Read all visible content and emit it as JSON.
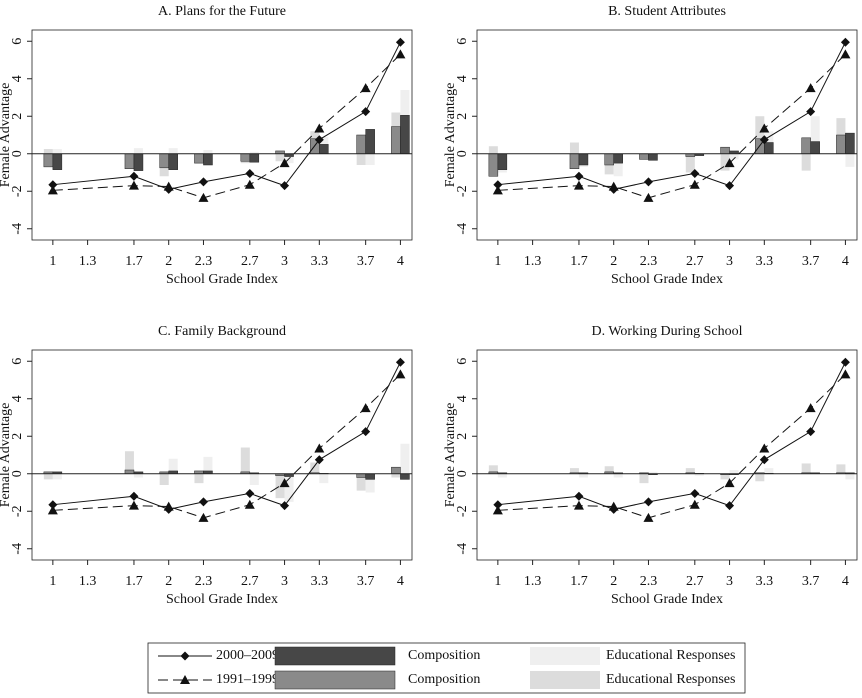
{
  "legend": {
    "rows": [
      {
        "period": "2000–2009:",
        "marker": "diamond",
        "dashed": false,
        "composition": "Composition",
        "composition_color": "#474747",
        "education": "Educational Responses",
        "education_color": "#efefef"
      },
      {
        "period": "1991–1999:",
        "marker": "triangle",
        "dashed": true,
        "composition": "Composition",
        "composition_color": "#8a8a8a",
        "education": "Educational Responses",
        "education_color": "#dcdcdc"
      }
    ]
  },
  "chart_data": [
    {
      "type": "combo",
      "title": "A. Plans for the Future",
      "x_label": "School Grade Index",
      "y_label": "Female Advantage",
      "x": [
        1,
        1.7,
        2,
        2.3,
        2.7,
        3,
        3.3,
        3.7,
        4
      ],
      "xlim": [
        0.82,
        4.1
      ],
      "xticks": [
        1,
        1.3,
        1.7,
        2,
        2.3,
        2.7,
        3,
        3.3,
        3.7,
        4
      ],
      "ylim": [
        -4.6,
        6.6
      ],
      "yticks": [
        -4,
        -2,
        0,
        2,
        4,
        6
      ],
      "lines": [
        [
          -1.65,
          -1.2,
          -1.9,
          -1.5,
          -1.05,
          -1.7,
          0.75,
          2.25,
          5.95
        ],
        [
          -1.95,
          -1.7,
          -1.75,
          -2.35,
          -1.65,
          -0.5,
          1.35,
          3.5,
          5.3
        ]
      ],
      "composition": [
        [
          -0.85,
          -0.9,
          -0.85,
          -0.6,
          -0.45,
          -0.15,
          0.5,
          1.3,
          2.05
        ],
        [
          -0.7,
          -0.8,
          -0.75,
          -0.5,
          -0.4,
          0.15,
          0.8,
          1.0,
          1.45
        ]
      ],
      "education": [
        [
          0.25,
          0.3,
          0.3,
          0.2,
          0.1,
          -0.5,
          0.9,
          -0.6,
          3.4
        ],
        [
          0.25,
          -0.6,
          -1.2,
          -0.4,
          -0.5,
          -0.4,
          1.2,
          -0.6,
          2.2
        ]
      ]
    },
    {
      "type": "combo",
      "title": "B. Student Attributes",
      "x_label": "School Grade Index",
      "y_label": "Female Advantage",
      "x": [
        1,
        1.7,
        2,
        2.3,
        2.7,
        3,
        3.3,
        3.7,
        4
      ],
      "xlim": [
        0.82,
        4.1
      ],
      "xticks": [
        1,
        1.3,
        1.7,
        2,
        2.3,
        2.7,
        3,
        3.3,
        3.7,
        4
      ],
      "ylim": [
        -4.6,
        6.6
      ],
      "yticks": [
        -4,
        -2,
        0,
        2,
        4,
        6
      ],
      "lines": [
        [
          -1.65,
          -1.2,
          -1.9,
          -1.5,
          -1.05,
          -1.7,
          0.75,
          2.25,
          5.95
        ],
        [
          -1.95,
          -1.7,
          -1.75,
          -2.35,
          -1.65,
          -0.5,
          1.35,
          3.5,
          5.3
        ]
      ],
      "composition": [
        [
          -0.85,
          -0.6,
          -0.5,
          -0.35,
          -0.1,
          0.15,
          0.6,
          0.65,
          1.1
        ],
        [
          -1.2,
          -0.8,
          -0.6,
          -0.3,
          -0.15,
          0.35,
          0.8,
          0.85,
          1.0
        ]
      ],
      "education": [
        [
          -1.0,
          -0.7,
          -1.2,
          -0.3,
          -0.1,
          -0.3,
          1.2,
          2.0,
          -0.7
        ],
        [
          0.4,
          0.6,
          -1.1,
          -0.2,
          -1.0,
          -0.9,
          2.0,
          -0.9,
          1.9
        ]
      ]
    },
    {
      "type": "combo",
      "title": "C. Family Background",
      "x_label": "School Grade Index",
      "y_label": "Female Advantage",
      "x": [
        1,
        1.7,
        2,
        2.3,
        2.7,
        3,
        3.3,
        3.7,
        4
      ],
      "xlim": [
        0.82,
        4.1
      ],
      "xticks": [
        1,
        1.3,
        1.7,
        2,
        2.3,
        2.7,
        3,
        3.3,
        3.7,
        4
      ],
      "ylim": [
        -4.6,
        6.6
      ],
      "yticks": [
        -4,
        -2,
        0,
        2,
        4,
        6
      ],
      "lines": [
        [
          -1.65,
          -1.2,
          -1.9,
          -1.5,
          -1.05,
          -1.7,
          0.75,
          2.25,
          5.95
        ],
        [
          -1.95,
          -1.7,
          -1.75,
          -2.35,
          -1.65,
          -0.5,
          1.35,
          3.5,
          5.3
        ]
      ],
      "composition": [
        [
          0.1,
          0.1,
          0.15,
          0.15,
          0.05,
          -0.15,
          0.02,
          -0.3,
          -0.3
        ],
        [
          0.1,
          0.2,
          0.1,
          0.15,
          0.1,
          -0.1,
          0.05,
          -0.2,
          0.35
        ]
      ],
      "education": [
        [
          -0.3,
          -0.2,
          0.8,
          0.9,
          -0.6,
          -1.5,
          -0.5,
          -1.0,
          1.6
        ],
        [
          -0.3,
          1.2,
          -0.6,
          -0.5,
          1.4,
          -1.3,
          0.6,
          -0.9,
          -0.2
        ]
      ]
    },
    {
      "type": "combo",
      "title": "D. Working During School",
      "x_label": "School Grade Index",
      "y_label": "Female Advantage",
      "x": [
        1,
        1.7,
        2,
        2.3,
        2.7,
        3,
        3.3,
        3.7,
        4
      ],
      "xlim": [
        0.82,
        4.1
      ],
      "xticks": [
        1,
        1.3,
        1.7,
        2,
        2.3,
        2.7,
        3,
        3.3,
        3.7,
        4
      ],
      "ylim": [
        -4.6,
        6.6
      ],
      "yticks": [
        -4,
        -2,
        0,
        2,
        4,
        6
      ],
      "lines": [
        [
          -1.65,
          -1.2,
          -1.9,
          -1.5,
          -1.05,
          -1.7,
          0.75,
          2.25,
          5.95
        ],
        [
          -1.95,
          -1.7,
          -1.75,
          -2.35,
          -1.65,
          -0.5,
          1.35,
          3.5,
          5.3
        ]
      ],
      "composition": [
        [
          0.05,
          0.05,
          0.05,
          -0.05,
          0.02,
          -0.05,
          0.02,
          0.05,
          0.05
        ],
        [
          0.1,
          0.05,
          0.1,
          0.05,
          0.05,
          -0.05,
          0.05,
          0.05,
          0.05
        ]
      ],
      "education": [
        [
          -0.2,
          -0.2,
          -0.2,
          0.1,
          -0.1,
          0.2,
          0.3,
          0.02,
          -0.3
        ],
        [
          0.45,
          0.3,
          0.4,
          -0.5,
          0.3,
          -0.3,
          -0.4,
          0.55,
          0.5
        ]
      ]
    }
  ]
}
